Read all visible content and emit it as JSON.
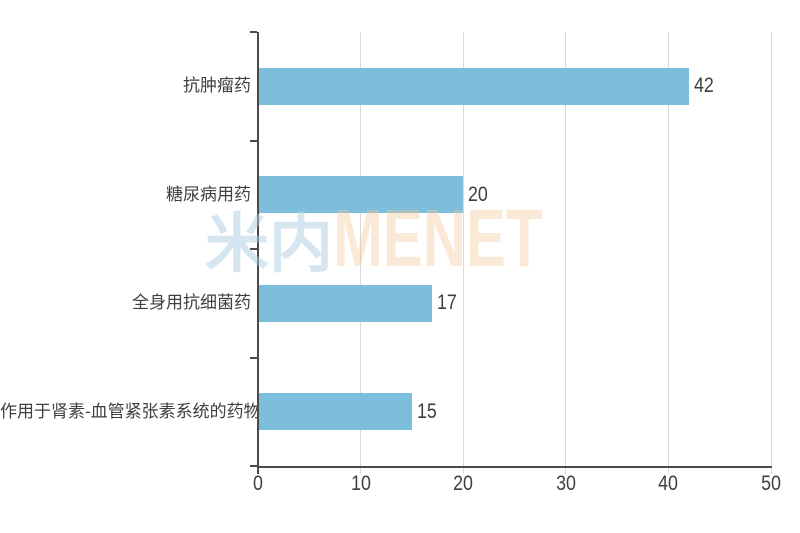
{
  "chart_data": {
    "type": "bar",
    "orientation": "horizontal",
    "title": "",
    "xlabel": "",
    "ylabel": "",
    "categories": [
      "抗肿瘤药",
      "糖尿病用药",
      "全身用抗细菌药",
      "作用于肾素-血管紧张素系统的药物"
    ],
    "values": [
      42,
      20,
      17,
      15
    ],
    "data_labels": [
      "42",
      "20",
      "17",
      "15"
    ],
    "xlim": [
      0,
      50
    ],
    "x_ticks": [
      0,
      10,
      20,
      30,
      40,
      50
    ],
    "x_tick_labels": [
      "0",
      "10",
      "20",
      "30",
      "40",
      "50"
    ],
    "grid": true,
    "legend": false,
    "colors": {
      "bar": "#7dbedd",
      "gridline": "#d9d9d9",
      "axis": "#4a4a4a",
      "text": "#3f3f3f"
    }
  },
  "watermark": {
    "cjk": "米内",
    "latin": "MENET",
    "cjk_color": "rgba(173,206,228,0.50)",
    "latin_color": "rgba(244,196,152,0.38)"
  }
}
